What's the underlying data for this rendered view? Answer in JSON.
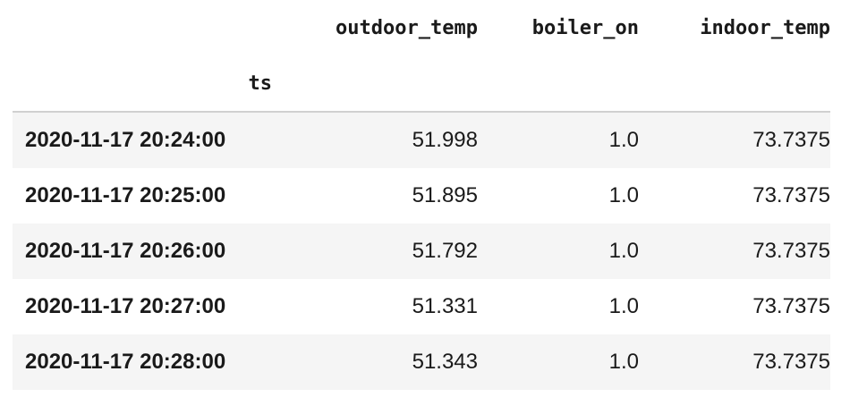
{
  "dataframe": {
    "columns": [
      "outdoor_temp",
      "boiler_on",
      "indoor_temp"
    ],
    "index_name": "ts",
    "rows": [
      {
        "index": "2020-11-17 20:24:00",
        "values": [
          "51.998",
          "1.0",
          "73.7375"
        ]
      },
      {
        "index": "2020-11-17 20:25:00",
        "values": [
          "51.895",
          "1.0",
          "73.7375"
        ]
      },
      {
        "index": "2020-11-17 20:26:00",
        "values": [
          "51.792",
          "1.0",
          "73.7375"
        ]
      },
      {
        "index": "2020-11-17 20:27:00",
        "values": [
          "51.331",
          "1.0",
          "73.7375"
        ]
      },
      {
        "index": "2020-11-17 20:28:00",
        "values": [
          "51.343",
          "1.0",
          "73.7375"
        ]
      }
    ]
  }
}
